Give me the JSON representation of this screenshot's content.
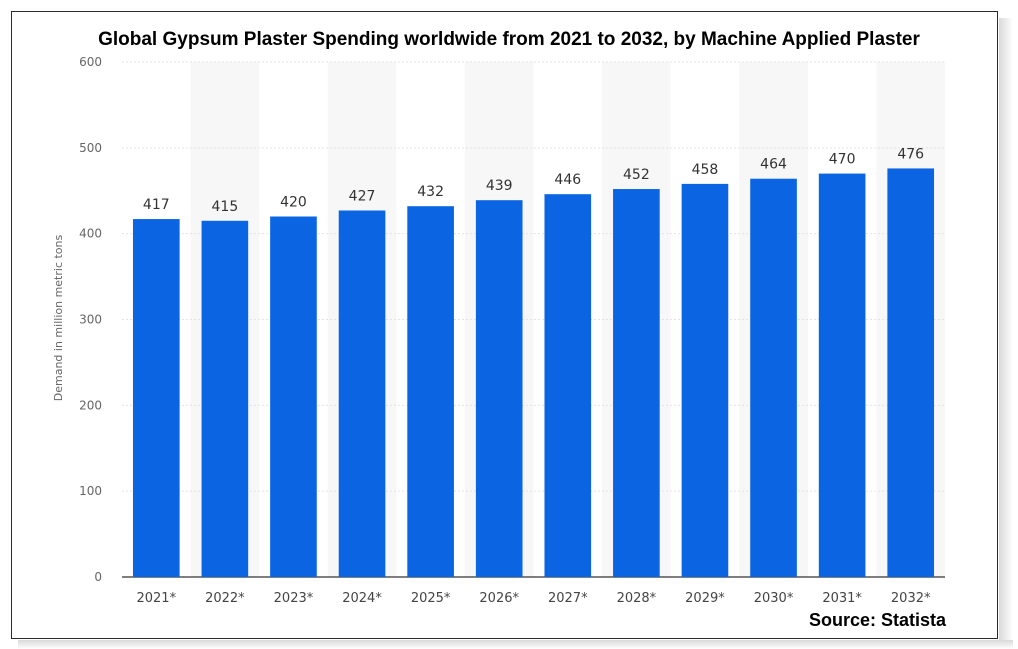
{
  "chart_data": {
    "type": "bar",
    "title": "Global Gypsum Plaster Spending worldwide from 2021 to 2032, by Machine Applied Plaster",
    "ylabel": "Demand in million metric tons",
    "xlabel": "",
    "categories": [
      "2021*",
      "2022*",
      "2023*",
      "2024*",
      "2025*",
      "2026*",
      "2027*",
      "2028*",
      "2029*",
      "2030*",
      "2031*",
      "2032*"
    ],
    "values": [
      417,
      415,
      420,
      427,
      432,
      439,
      446,
      452,
      458,
      464,
      470,
      476
    ],
    "data_labels": [
      "417",
      "415",
      "420",
      "427",
      "432",
      "439",
      "446",
      "452",
      "458",
      "464",
      "470",
      "476"
    ],
    "ylim": [
      0,
      600
    ],
    "yticks": [
      0,
      100,
      200,
      300,
      400,
      500,
      600
    ],
    "ytick_labels": [
      "0",
      "100",
      "200",
      "300",
      "400",
      "500",
      "600"
    ],
    "grid": true,
    "bar_color": "#0b65e3",
    "source": "Source: Statista"
  }
}
